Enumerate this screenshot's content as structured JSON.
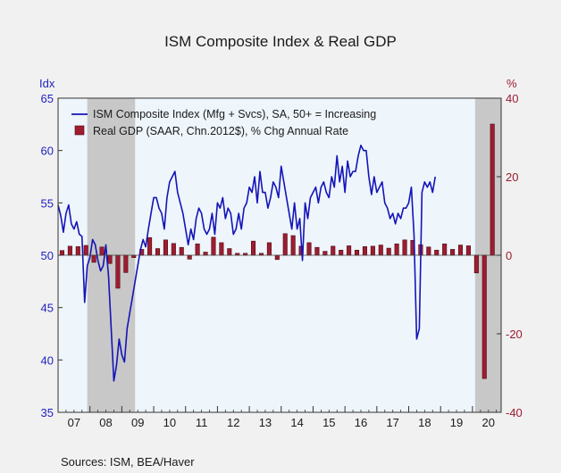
{
  "chart_data": {
    "type": "bar+line",
    "title": "ISM Composite Index & Real GDP",
    "source": "Sources:  ISM, BEA/Haver",
    "left_axis": {
      "unit": "Idx",
      "range": [
        35,
        65
      ],
      "ticks": [
        "35",
        "40",
        "45",
        "50",
        "55",
        "60",
        "65"
      ]
    },
    "right_axis": {
      "unit": "%",
      "range": [
        -40,
        40
      ],
      "ticks": [
        "-40",
        "-20",
        "0",
        "20",
        "40"
      ]
    },
    "x_axis": {
      "range": [
        2007.0,
        2020.9
      ],
      "tick_labels": [
        "07",
        "08",
        "09",
        "10",
        "11",
        "12",
        "13",
        "14",
        "15",
        "16",
        "17",
        "18",
        "19",
        "20"
      ]
    },
    "recessions": [
      [
        2007.917,
        2009.417
      ],
      [
        2020.083,
        2020.9
      ]
    ],
    "colors": {
      "line": "#1414b8",
      "bar": "#a01c30",
      "bar_stroke": "#4a0a12",
      "recession": "#c8c8c8",
      "plot_bg": "#eef5fb"
    },
    "legend": [
      {
        "label": "ISM Composite Index (Mfg + Svcs), SA, 50+ = Increasing"
      },
      {
        "label": "Real GDP (SAAR, Chn.2012$), % Chg Annual Rate"
      }
    ],
    "series": [
      {
        "name": "ISM Composite Index (Mfg + Svcs), SA, 50+ = Increasing",
        "kind": "line",
        "axis": "left",
        "start": 2007.0,
        "step": 0.08333,
        "values": [
          54.8,
          53.8,
          52.2,
          54.0,
          54.8,
          53.0,
          52.5,
          53.2,
          52.0,
          51.8,
          45.5,
          49.0,
          49.8,
          51.5,
          51.0,
          49.5,
          48.5,
          49.0,
          51.0,
          48.0,
          43.0,
          38.0,
          39.5,
          42.0,
          40.5,
          39.8,
          43.0,
          44.5,
          46.0,
          47.5,
          49.0,
          50.5,
          51.5,
          50.8,
          52.5,
          54.0,
          55.5,
          55.5,
          54.5,
          54.0,
          52.5,
          55.5,
          57.0,
          57.5,
          58.0,
          56.0,
          55.0,
          54.0,
          52.5,
          51.0,
          52.5,
          51.5,
          53.5,
          54.5,
          54.0,
          52.5,
          52.0,
          52.5,
          54.0,
          52.0,
          55.0,
          54.5,
          55.5,
          53.5,
          54.5,
          54.0,
          52.0,
          52.5,
          54.0,
          52.5,
          54.5,
          55.0,
          56.5,
          56.0,
          57.5,
          55.0,
          58.0,
          56.0,
          56.0,
          54.5,
          55.5,
          57.0,
          56.5,
          55.5,
          58.5,
          57.0,
          55.5,
          54.0,
          52.5,
          55.0,
          52.5,
          53.5,
          49.5,
          55.0,
          53.5,
          55.5,
          56.0,
          56.5,
          55.0,
          56.5,
          57.0,
          56.0,
          55.5,
          57.5,
          56.5,
          59.5,
          57.0,
          58.5,
          56.0,
          59.0,
          57.5,
          58.0,
          58.0,
          59.5,
          60.5,
          60.0,
          60.0,
          57.5,
          55.8,
          57.5,
          56.0,
          56.5,
          57.0,
          55.0,
          54.5,
          53.5,
          54.0,
          53.0,
          54.0,
          53.5,
          54.5,
          54.5,
          55.0,
          56.5,
          52.0,
          42.0,
          43.0,
          56.0,
          57.0,
          56.5,
          57.0,
          56.0,
          57.5
        ]
      },
      {
        "name": "Real GDP (SAAR, Chn.2012$), % Chg Annual Rate",
        "kind": "bar",
        "axis": "right",
        "x": [
          2007.125,
          2007.375,
          2007.625,
          2007.875,
          2008.125,
          2008.375,
          2008.625,
          2008.875,
          2009.125,
          2009.375,
          2009.625,
          2009.875,
          2010.125,
          2010.375,
          2010.625,
          2010.875,
          2011.125,
          2011.375,
          2011.625,
          2011.875,
          2012.125,
          2012.375,
          2012.625,
          2012.875,
          2013.125,
          2013.375,
          2013.625,
          2013.875,
          2014.125,
          2014.375,
          2014.625,
          2014.875,
          2015.125,
          2015.375,
          2015.625,
          2015.875,
          2016.125,
          2016.375,
          2016.625,
          2016.875,
          2017.125,
          2017.375,
          2017.625,
          2017.875,
          2018.125,
          2018.375,
          2018.625,
          2018.875,
          2019.125,
          2019.375,
          2019.625,
          2019.875,
          2020.125,
          2020.375,
          2020.625
        ],
        "values": [
          1.2,
          2.3,
          2.2,
          2.5,
          -1.8,
          2.1,
          -2.1,
          -8.4,
          -4.4,
          -0.6,
          1.5,
          4.5,
          1.7,
          3.9,
          3.0,
          2.0,
          -1.0,
          2.9,
          0.8,
          4.6,
          3.2,
          1.7,
          0.5,
          0.5,
          3.6,
          0.5,
          3.2,
          -1.1,
          5.5,
          5.0,
          2.3,
          3.2,
          2.0,
          1.0,
          2.3,
          1.3,
          2.4,
          1.3,
          2.2,
          2.3,
          2.6,
          1.8,
          2.9,
          3.9,
          3.8,
          2.7,
          2.1,
          1.3,
          2.9,
          1.5,
          2.6,
          2.4,
          -4.5,
          -31.4,
          33.4
        ]
      }
    ]
  }
}
